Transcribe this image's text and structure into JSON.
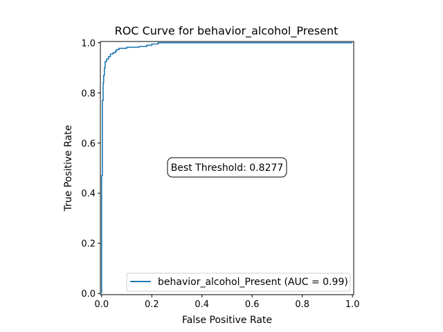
{
  "chart_data": {
    "type": "line",
    "title": "ROC Curve for behavior_alcohol_Present",
    "xlabel": "False Positive Rate",
    "ylabel": "True Positive Rate",
    "xlim": [
      -0.005,
      1.005
    ],
    "ylim": [
      -0.005,
      1.005
    ],
    "xticks": [
      0.0,
      0.2,
      0.4,
      0.6,
      0.8,
      1.0
    ],
    "yticks": [
      0.0,
      0.2,
      0.4,
      0.6,
      0.8,
      1.0
    ],
    "xtick_labels": [
      "0.0",
      "0.2",
      "0.4",
      "0.6",
      "0.8",
      "1.0"
    ],
    "ytick_labels": [
      "0.0",
      "0.2",
      "0.4",
      "0.6",
      "0.8",
      "1.0"
    ],
    "grid": false,
    "legend_position": "lower-right",
    "annotation": "Best Threshold: 0.8277",
    "series": [
      {
        "name": "behavior_alcohol_Present (AUC = 0.99)",
        "color": "#1f77b4",
        "x": [
          0.0,
          0.0,
          0.003,
          0.003,
          0.006,
          0.006,
          0.008,
          0.008,
          0.011,
          0.011,
          0.014,
          0.014,
          0.02,
          0.02,
          0.028,
          0.028,
          0.035,
          0.035,
          0.045,
          0.045,
          0.055,
          0.055,
          0.06,
          0.06,
          0.07,
          0.07,
          0.1,
          0.1,
          0.15,
          0.15,
          0.18,
          0.18,
          0.2,
          0.2,
          0.225,
          0.225,
          1.0
        ],
        "y": [
          0.0,
          0.47,
          0.47,
          0.77,
          0.77,
          0.84,
          0.84,
          0.87,
          0.87,
          0.9,
          0.9,
          0.925,
          0.925,
          0.935,
          0.935,
          0.945,
          0.945,
          0.955,
          0.955,
          0.96,
          0.96,
          0.967,
          0.967,
          0.973,
          0.973,
          0.978,
          0.978,
          0.982,
          0.982,
          0.985,
          0.985,
          0.99,
          0.99,
          0.995,
          0.995,
          1.0,
          1.0
        ]
      }
    ]
  }
}
